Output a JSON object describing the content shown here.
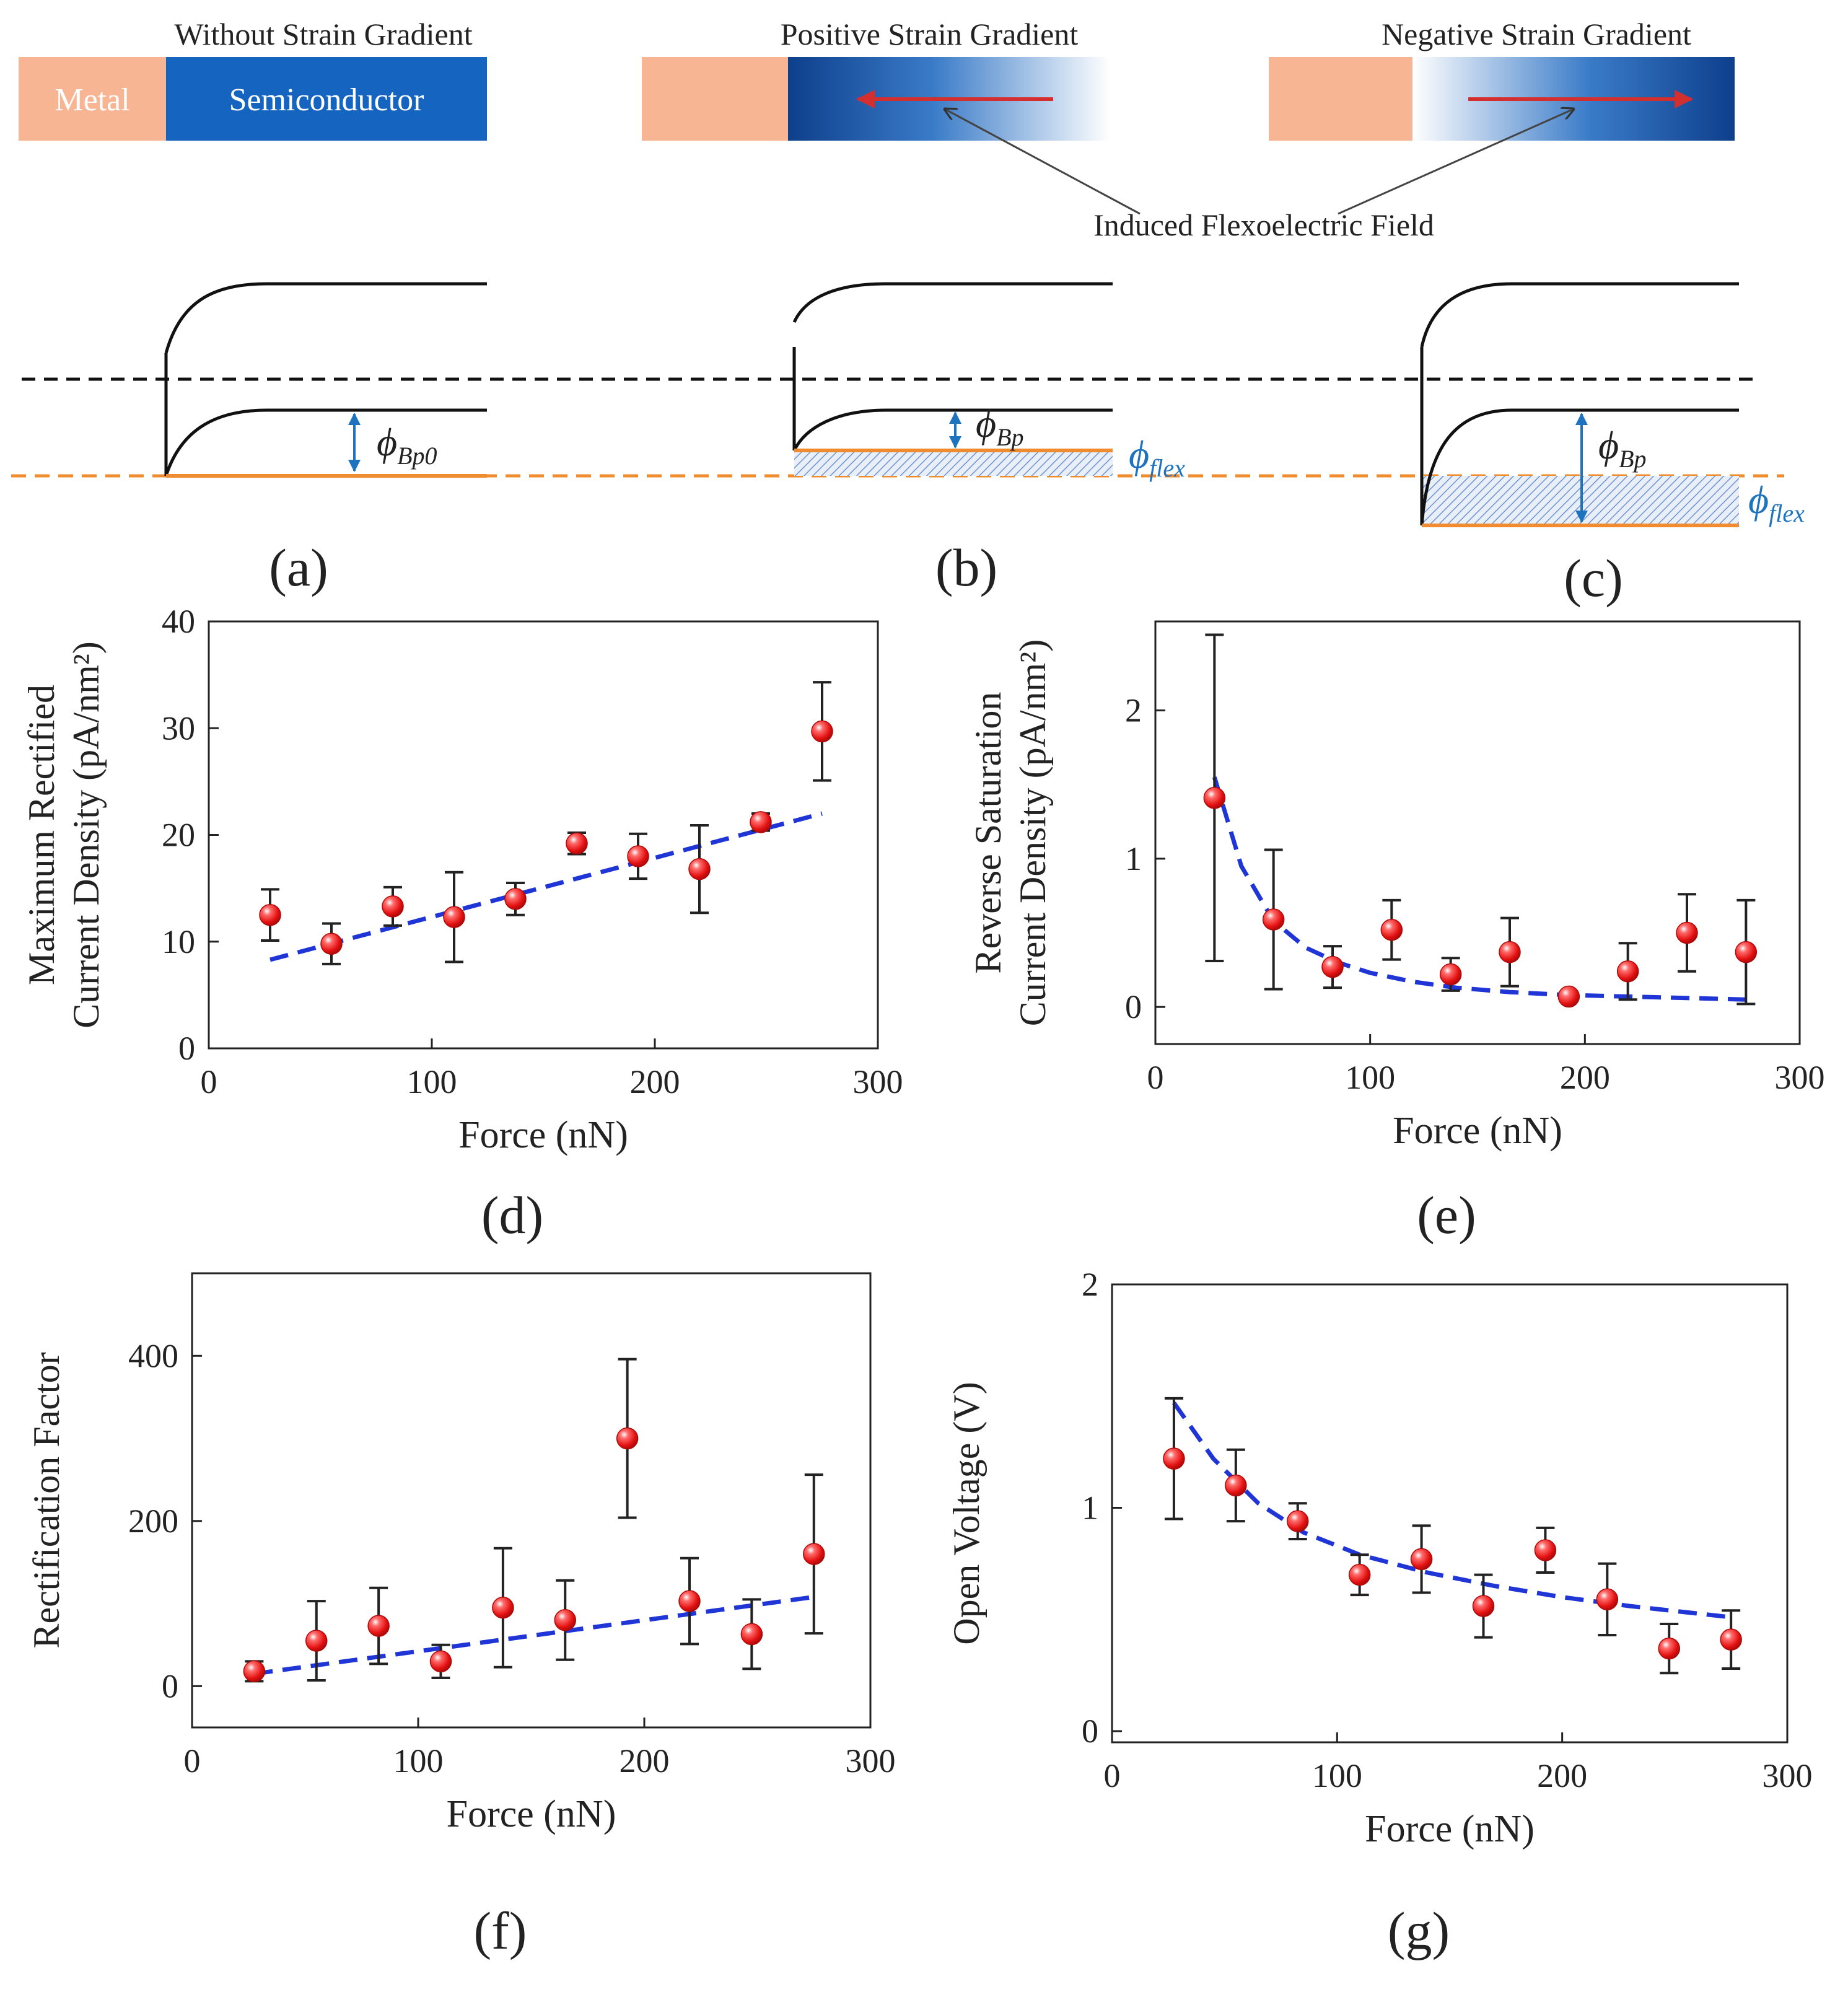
{
  "colors": {
    "metal": "#f8b594",
    "semiconductor": "#1565c0",
    "semiconductor_dark": "#0d47a1",
    "arrow_red": "#d32f2f",
    "fermi_orange": "#ef8c2f",
    "phi_blue": "#1e73be",
    "hatch_blue": "#6e93cf",
    "fit_blue": "#1f35d6",
    "marker_red": "#ee1c1c"
  },
  "diagram": {
    "a": {
      "header": "Without Strain Gradient",
      "metal_label": "Metal",
      "semi_label": "Semiconductor",
      "phi_label": "ϕ",
      "phi_sub": "Bp0",
      "panel": "(a)"
    },
    "b": {
      "header": "Positive Strain Gradient",
      "phi_label": "ϕ",
      "phi_sub": "Bp",
      "flex_label": "ϕ",
      "flex_sub": "flex",
      "panel": "(b)"
    },
    "c": {
      "header": "Negative  Strain Gradient",
      "phi_label": "ϕ",
      "phi_sub": "Bp",
      "flex_label": "ϕ",
      "flex_sub": "flex",
      "panel": "(c)"
    },
    "annotation": "Induced Flexoelectric Field",
    "field_arrows": [
      {
        "panel": "b",
        "direction": "left"
      },
      {
        "panel": "c",
        "direction": "right"
      }
    ]
  },
  "chart_data": [
    {
      "panel": "(d)",
      "type": "scatter",
      "xlabel": "Force (nN)",
      "ylabel_lines": [
        "Maximum Rectified",
        "Current Density (pA/nm²)"
      ],
      "xlim": [
        0,
        300
      ],
      "ylim": [
        0,
        40
      ],
      "xticks": [
        0,
        100,
        200,
        300
      ],
      "yticks": [
        0,
        10,
        20,
        30,
        40
      ],
      "x": [
        27.5,
        55,
        82.5,
        110,
        137.5,
        165,
        192.5,
        220,
        247.5,
        275
      ],
      "y": [
        12.5,
        9.8,
        13.3,
        12.3,
        14.0,
        19.2,
        18.0,
        16.8,
        21.2,
        29.7
      ],
      "err": [
        2.4,
        1.9,
        1.8,
        4.2,
        1.5,
        1.0,
        2.1,
        4.1,
        0.8,
        4.6
      ],
      "fit": {
        "x": [
          27.5,
          275
        ],
        "y": [
          8.3,
          22.0
        ]
      },
      "label_anchor": "right"
    },
    {
      "panel": "(e)",
      "type": "scatter",
      "xlabel": "Force (nN)",
      "ylabel_lines": [
        "Reverse Saturation",
        "Current Density (pA/nm²)"
      ],
      "xlim": [
        0,
        300
      ],
      "ylim": [
        -0.25,
        2.6
      ],
      "xticks": [
        0,
        100,
        200,
        300
      ],
      "yticks": [
        0,
        1,
        2
      ],
      "x": [
        27.5,
        55,
        82.5,
        110,
        137.5,
        165,
        192.5,
        220,
        247.5,
        275
      ],
      "y": [
        1.41,
        0.59,
        0.27,
        0.52,
        0.22,
        0.37,
        0.07,
        0.24,
        0.5,
        0.37
      ],
      "err": [
        1.1,
        0.47,
        0.14,
        0.2,
        0.11,
        0.23,
        0.03,
        0.19,
        0.26,
        0.35
      ],
      "fit": {
        "x": [
          27.5,
          40,
          55,
          70,
          85,
          100,
          120,
          140,
          165,
          192.5,
          220,
          247.5,
          275
        ],
        "y": [
          1.55,
          0.95,
          0.58,
          0.4,
          0.3,
          0.23,
          0.17,
          0.13,
          0.1,
          0.08,
          0.07,
          0.06,
          0.05
        ]
      },
      "label_anchor": "right"
    },
    {
      "panel": "(f)",
      "type": "scatter",
      "xlabel": "Force (nN)",
      "ylabel_lines": [
        "Rectification  Factor"
      ],
      "xlim": [
        0,
        300
      ],
      "ylim": [
        -50,
        500
      ],
      "xticks": [
        0,
        100,
        200,
        300
      ],
      "yticks": [
        0,
        200,
        400
      ],
      "x": [
        27.5,
        55,
        82.5,
        110,
        137.5,
        165,
        192.5,
        220,
        247.5,
        275
      ],
      "y": [
        18,
        55,
        73,
        30,
        95,
        80,
        300,
        103,
        63,
        160
      ],
      "err": [
        12,
        48,
        46,
        20,
        72,
        48,
        96,
        52,
        42,
        96
      ],
      "fit": {
        "x": [
          27.5,
          275
        ],
        "y": [
          15,
          108
        ]
      },
      "label_anchor": "left"
    },
    {
      "panel": "(g)",
      "type": "scatter",
      "xlabel": "Force (nN)",
      "ylabel_lines": [
        "Open Voltage (V)"
      ],
      "xlim": [
        0,
        300
      ],
      "ylim": [
        -0.05,
        2.0
      ],
      "xticks": [
        0,
        100,
        200,
        300
      ],
      "yticks": [
        0,
        1,
        2
      ],
      "x": [
        27.5,
        55,
        82.5,
        110,
        137.5,
        165,
        192.5,
        220,
        247.5,
        275
      ],
      "y": [
        1.22,
        1.1,
        0.94,
        0.7,
        0.77,
        0.56,
        0.81,
        0.59,
        0.37,
        0.41
      ],
      "err": [
        0.27,
        0.16,
        0.08,
        0.09,
        0.15,
        0.14,
        0.1,
        0.16,
        0.11,
        0.13
      ],
      "fit": {
        "x": [
          27.5,
          45,
          65,
          85,
          110,
          140,
          170,
          200,
          230,
          275
        ],
        "y": [
          1.47,
          1.22,
          1.02,
          0.89,
          0.79,
          0.71,
          0.65,
          0.6,
          0.56,
          0.51
        ]
      },
      "label_anchor": "right"
    }
  ]
}
